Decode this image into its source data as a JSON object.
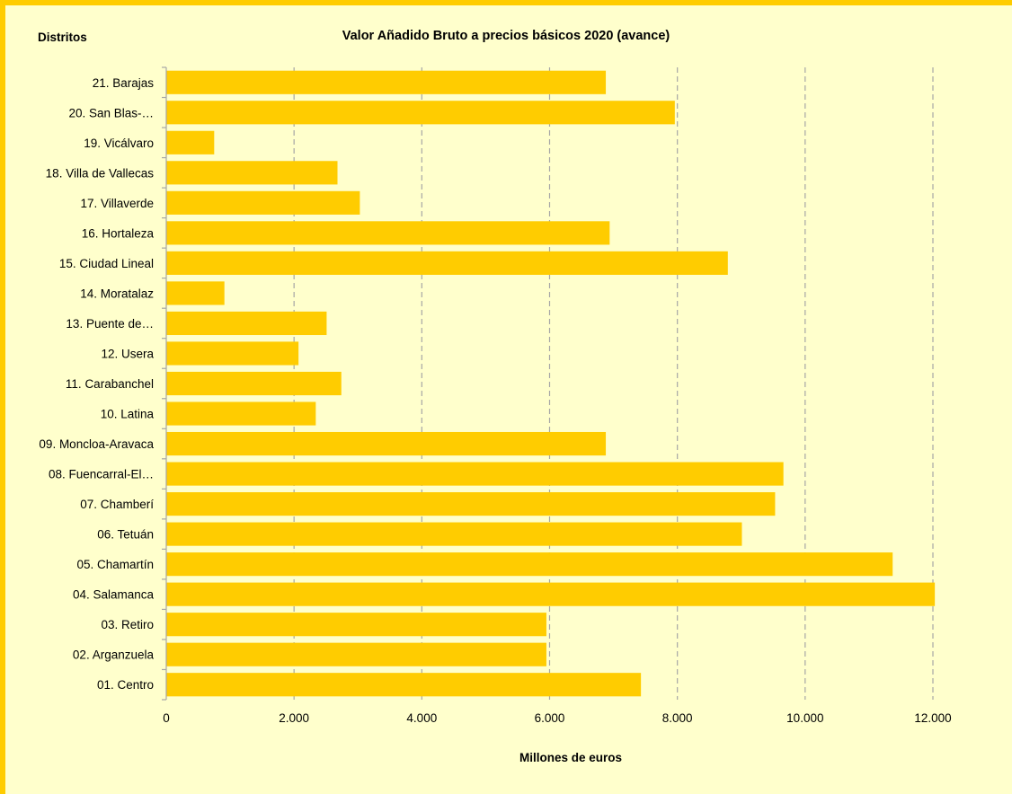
{
  "chart_data": {
    "type": "bar",
    "orientation": "horizontal",
    "title": "Valor Añadido Bruto a precios básicos 2020 (avance)",
    "ylabel": "Distritos",
    "xlabel": "Millones de euros",
    "xlim": [
      0,
      12000
    ],
    "x_ticks": [
      0,
      2000,
      4000,
      6000,
      8000,
      10000,
      12000
    ],
    "x_tick_labels": [
      "0",
      "2.000",
      "4.000",
      "6.000",
      "8.000",
      "10.000",
      "12.000"
    ],
    "grid": "vertical dashed",
    "legend": "none",
    "bar_color": "#FFCC00",
    "background_color": "#FFFFCC",
    "categories": [
      "01. Centro",
      "02. Arganzuela",
      "03. Retiro",
      "04. Salamanca",
      "05. Chamartín",
      "06. Tetuán",
      "07. Chamberí",
      "08. Fuencarral-El…",
      "09. Moncloa-Aravaca",
      "10. Latina",
      "11. Carabanchel",
      "12. Usera",
      "13. Puente de…",
      "14. Moratalaz",
      "15. Ciudad Lineal",
      "16. Hortaleza",
      "17. Villaverde",
      "18. Villa de Vallecas",
      "19. Vicálvaro",
      "20. San Blas-…",
      "21. Barajas"
    ],
    "values": [
      7430,
      5950,
      5950,
      12030,
      11370,
      9010,
      9530,
      9660,
      6880,
      2340,
      2740,
      2070,
      2510,
      910,
      8790,
      6940,
      3030,
      2680,
      750,
      7960,
      6880
    ]
  }
}
